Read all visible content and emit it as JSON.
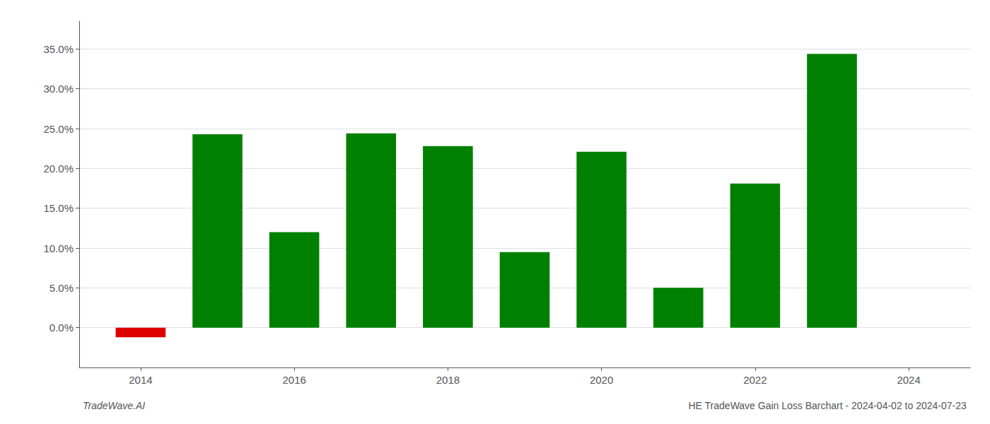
{
  "chart_data": {
    "type": "bar",
    "title": "HE TradeWave Gain Loss Barchart - 2024-04-02 to 2024-07-23",
    "annotations": [
      "TradeWave.AI"
    ],
    "x": [
      2014,
      2015,
      2016,
      2017,
      2018,
      2019,
      2020,
      2021,
      2022,
      2023
    ],
    "values": [
      -0.012,
      0.243,
      0.12,
      0.244,
      0.228,
      0.095,
      0.221,
      0.05,
      0.181,
      0.344
    ],
    "colors": [
      "#dd0000",
      "#008000",
      "#008000",
      "#008000",
      "#008000",
      "#008000",
      "#008000",
      "#008000",
      "#008000",
      "#008000"
    ],
    "xlim": [
      2013.2,
      2024.8
    ],
    "xticks": [
      2014,
      2016,
      2018,
      2020,
      2022,
      2024
    ],
    "ylim": [
      -0.05,
      0.385
    ],
    "yticks": [
      {
        "value": 0.0,
        "label": "0.0%"
      },
      {
        "value": 0.05,
        "label": "5.0%"
      },
      {
        "value": 0.1,
        "label": "10.0%"
      },
      {
        "value": 0.15,
        "label": "15.0%"
      },
      {
        "value": 0.2,
        "label": "20.0%"
      },
      {
        "value": 0.25,
        "label": "25.0%"
      },
      {
        "value": 0.3,
        "label": "30.0%"
      },
      {
        "value": 0.35,
        "label": "35.0%"
      }
    ],
    "grid": true
  }
}
